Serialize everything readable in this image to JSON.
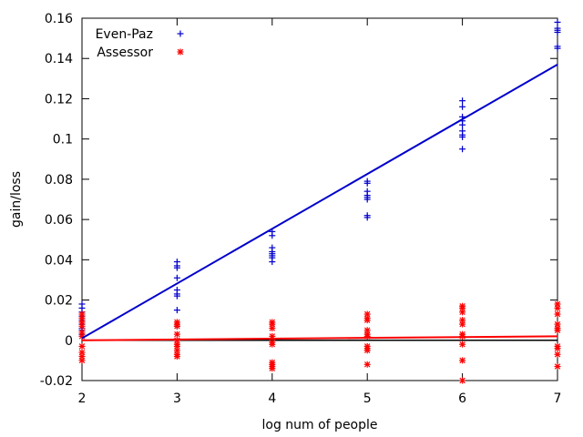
{
  "chart_data": {
    "type": "scatter",
    "xlabel": "log num of people",
    "ylabel": "gain/loss",
    "xlim": [
      2,
      7
    ],
    "ylim": [
      -0.02,
      0.16
    ],
    "xticks": [
      "2",
      "3",
      "4",
      "5",
      "6",
      "7"
    ],
    "yticks": [
      "-0.02",
      "0",
      "0.02",
      "0.04",
      "0.06",
      "0.08",
      "0.1",
      "0.12",
      "0.14",
      "0.16"
    ],
    "grid": false,
    "legend_position": "top-left",
    "series": [
      {
        "name": "Even-Paz",
        "marker": "plus",
        "color": "#0000cc",
        "points": [
          [
            2,
            0.018
          ],
          [
            2,
            0.016
          ],
          [
            2,
            0.014
          ],
          [
            2,
            0.012
          ],
          [
            2,
            0.011
          ],
          [
            2,
            0.01
          ],
          [
            2,
            0.009
          ],
          [
            2,
            0.008
          ],
          [
            2,
            0.006
          ],
          [
            2,
            0.005
          ],
          [
            2,
            0.003
          ],
          [
            2,
            0.002
          ],
          [
            3,
            0.039
          ],
          [
            3,
            0.037
          ],
          [
            3,
            0.036
          ],
          [
            3,
            0.031
          ],
          [
            3,
            0.025
          ],
          [
            3,
            0.023
          ],
          [
            3,
            0.022
          ],
          [
            3,
            0.015
          ],
          [
            3,
            0.007
          ],
          [
            4,
            0.054
          ],
          [
            4,
            0.052
          ],
          [
            4,
            0.046
          ],
          [
            4,
            0.044
          ],
          [
            4,
            0.043
          ],
          [
            4,
            0.042
          ],
          [
            4,
            0.041
          ],
          [
            4,
            0.039
          ],
          [
            5,
            0.079
          ],
          [
            5,
            0.078
          ],
          [
            5,
            0.074
          ],
          [
            5,
            0.072
          ],
          [
            5,
            0.071
          ],
          [
            5,
            0.07
          ],
          [
            5,
            0.062
          ],
          [
            5,
            0.061
          ],
          [
            6,
            0.119
          ],
          [
            6,
            0.116
          ],
          [
            6,
            0.111
          ],
          [
            6,
            0.109
          ],
          [
            6,
            0.107
          ],
          [
            6,
            0.104
          ],
          [
            6,
            0.102
          ],
          [
            6,
            0.101
          ],
          [
            6,
            0.095
          ],
          [
            7,
            0.158
          ],
          [
            7,
            0.155
          ],
          [
            7,
            0.154
          ],
          [
            7,
            0.153
          ],
          [
            7,
            0.146
          ],
          [
            7,
            0.145
          ]
        ],
        "trend": [
          [
            2,
            0.001
          ],
          [
            7,
            0.137
          ]
        ]
      },
      {
        "name": "Assessor",
        "marker": "star",
        "color": "#ff0000",
        "points": [
          [
            2,
            0.013
          ],
          [
            2,
            0.011
          ],
          [
            2,
            0.009
          ],
          [
            2,
            0.007
          ],
          [
            2,
            0.004
          ],
          [
            2,
            0.002
          ],
          [
            2,
            -0.003
          ],
          [
            2,
            -0.006
          ],
          [
            2,
            -0.008
          ],
          [
            2,
            -0.01
          ],
          [
            3,
            0.009
          ],
          [
            3,
            0.008
          ],
          [
            3,
            0.007
          ],
          [
            3,
            0.003
          ],
          [
            3,
            0.0
          ],
          [
            3,
            -0.002
          ],
          [
            3,
            -0.003
          ],
          [
            3,
            -0.005
          ],
          [
            3,
            -0.007
          ],
          [
            3,
            -0.008
          ],
          [
            4,
            0.009
          ],
          [
            4,
            0.008
          ],
          [
            4,
            0.006
          ],
          [
            4,
            0.002
          ],
          [
            4,
            -0.001
          ],
          [
            4,
            -0.002
          ],
          [
            4,
            -0.011
          ],
          [
            4,
            -0.012
          ],
          [
            4,
            -0.013
          ],
          [
            4,
            -0.014
          ],
          [
            5,
            0.013
          ],
          [
            5,
            0.011
          ],
          [
            5,
            0.01
          ],
          [
            5,
            0.005
          ],
          [
            5,
            0.003
          ],
          [
            5,
            0.002
          ],
          [
            5,
            -0.003
          ],
          [
            5,
            -0.004
          ],
          [
            5,
            -0.005
          ],
          [
            5,
            -0.012
          ],
          [
            6,
            0.017
          ],
          [
            6,
            0.016
          ],
          [
            6,
            0.014
          ],
          [
            6,
            0.01
          ],
          [
            6,
            0.008
          ],
          [
            6,
            0.003
          ],
          [
            6,
            0.002
          ],
          [
            6,
            -0.002
          ],
          [
            6,
            -0.01
          ],
          [
            6,
            -0.02
          ],
          [
            7,
            0.018
          ],
          [
            7,
            0.016
          ],
          [
            7,
            0.013
          ],
          [
            7,
            0.008
          ],
          [
            7,
            0.006
          ],
          [
            7,
            0.005
          ],
          [
            7,
            -0.003
          ],
          [
            7,
            -0.004
          ],
          [
            7,
            -0.007
          ],
          [
            7,
            -0.013
          ]
        ],
        "trend": [
          [
            2,
            0.0
          ],
          [
            7,
            0.002
          ]
        ]
      }
    ],
    "zero_line": {
      "y": 0,
      "color": "#000000"
    }
  }
}
